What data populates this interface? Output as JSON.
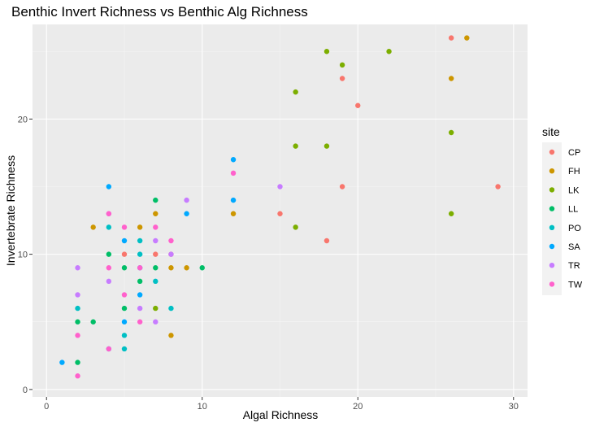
{
  "chart_data": {
    "type": "scatter",
    "title": "Benthic Invert Richness vs Benthic Alg Richness",
    "xlabel": "Algal Richness",
    "ylabel": "Invertebrate Richness",
    "xlim": [
      0,
      30
    ],
    "ylim": [
      0,
      26
    ],
    "x_ticks": [
      0,
      10,
      20,
      30
    ],
    "y_ticks": [
      0,
      10,
      20
    ],
    "grid": true,
    "legend": {
      "title": "site",
      "position": "right"
    },
    "series": [
      {
        "name": "CP",
        "color": "#F8766D",
        "points": [
          [
            26,
            26
          ],
          [
            19,
            23
          ],
          [
            20,
            21
          ],
          [
            19,
            15
          ],
          [
            29,
            15
          ],
          [
            15,
            13
          ],
          [
            18,
            11
          ],
          [
            7,
            10
          ],
          [
            5,
            10
          ],
          [
            8,
            10
          ]
        ]
      },
      {
        "name": "FH",
        "color": "#CD9600",
        "points": [
          [
            27,
            26
          ],
          [
            26,
            23
          ],
          [
            3,
            12
          ],
          [
            6,
            12
          ],
          [
            7,
            13
          ],
          [
            12,
            13
          ],
          [
            8,
            9
          ],
          [
            9,
            9
          ],
          [
            8,
            4
          ]
        ]
      },
      {
        "name": "LK",
        "color": "#7CAE00",
        "points": [
          [
            18,
            25
          ],
          [
            22,
            25
          ],
          [
            19,
            24
          ],
          [
            16,
            22
          ],
          [
            26,
            19
          ],
          [
            16,
            18
          ],
          [
            18,
            18
          ],
          [
            26,
            13
          ],
          [
            16,
            12
          ],
          [
            7,
            6
          ]
        ]
      },
      {
        "name": "LL",
        "color": "#00BE67",
        "points": [
          [
            7,
            14
          ],
          [
            4,
            10
          ],
          [
            5,
            9
          ],
          [
            7,
            9
          ],
          [
            10,
            9
          ],
          [
            6,
            8
          ],
          [
            2,
            5
          ],
          [
            3,
            5
          ],
          [
            5,
            6
          ],
          [
            2,
            2
          ]
        ]
      },
      {
        "name": "PO",
        "color": "#00BFC4",
        "points": [
          [
            4,
            12
          ],
          [
            6,
            11
          ],
          [
            6,
            10
          ],
          [
            7,
            8
          ],
          [
            8,
            6
          ],
          [
            2,
            6
          ],
          [
            5,
            4
          ],
          [
            5,
            3
          ]
        ]
      },
      {
        "name": "SA",
        "color": "#00A9FF",
        "points": [
          [
            4,
            15
          ],
          [
            12,
            17
          ],
          [
            12,
            14
          ],
          [
            9,
            13
          ],
          [
            5,
            11
          ],
          [
            6,
            9
          ],
          [
            6,
            7
          ],
          [
            5,
            5
          ],
          [
            4,
            3
          ],
          [
            1,
            2
          ]
        ]
      },
      {
        "name": "TR",
        "color": "#C77CFF",
        "points": [
          [
            9,
            14
          ],
          [
            15,
            15
          ],
          [
            4,
            13
          ],
          [
            7,
            11
          ],
          [
            2,
            9
          ],
          [
            4,
            8
          ],
          [
            8,
            10
          ],
          [
            2,
            7
          ],
          [
            6,
            6
          ],
          [
            7,
            5
          ]
        ]
      },
      {
        "name": "TW",
        "color": "#FF61CC",
        "points": [
          [
            12,
            16
          ],
          [
            4,
            13
          ],
          [
            5,
            12
          ],
          [
            7,
            12
          ],
          [
            8,
            11
          ],
          [
            4,
            9
          ],
          [
            6,
            9
          ],
          [
            5,
            7
          ],
          [
            6,
            5
          ],
          [
            2,
            4
          ],
          [
            4,
            3
          ],
          [
            2,
            1
          ]
        ]
      }
    ]
  }
}
